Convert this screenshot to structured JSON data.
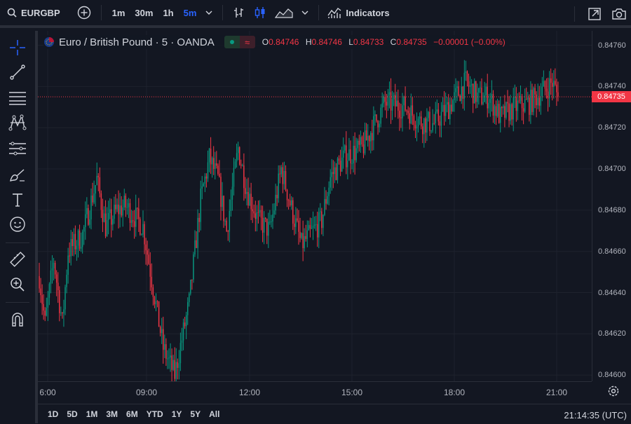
{
  "header": {
    "symbol": "EURGBP",
    "intervals": [
      "1m",
      "30m",
      "1h",
      "5m"
    ],
    "active_interval": "5m",
    "indicators_label": "Indicators"
  },
  "legend": {
    "title": "Euro / British Pound · 5 · OANDA",
    "o_label": "O",
    "o": "0.84746",
    "h_label": "H",
    "h": "0.84746",
    "l_label": "L",
    "l": "0.84733",
    "c_label": "C",
    "c": "0.84735",
    "change": "−0.00001 (−0.00%)"
  },
  "price_axis": {
    "ticks": [
      "0.84760",
      "0.84740",
      "0.84720",
      "0.84700",
      "0.84680",
      "0.84660",
      "0.84640",
      "0.84620",
      "0.84600"
    ],
    "last_price": "0.84735"
  },
  "time_axis": {
    "ticks": [
      "6:00",
      "09:00",
      "12:00",
      "15:00",
      "18:00",
      "21:00"
    ]
  },
  "ranges": [
    "1D",
    "5D",
    "1M",
    "3M",
    "6M",
    "YTD",
    "1Y",
    "5Y",
    "All"
  ],
  "clock": "21:14:35 (UTC)",
  "colors": {
    "up": "#089981",
    "down": "#f23645",
    "bg": "#131722",
    "accent": "#2962ff"
  },
  "chart_data": {
    "type": "candlestick",
    "ylim": [
      0.84597,
      0.84767
    ],
    "last_price": 0.84735,
    "anchors": [
      [
        0,
        0.84648
      ],
      [
        4,
        0.84625
      ],
      [
        10,
        0.84656
      ],
      [
        16,
        0.84625
      ],
      [
        20,
        0.8466
      ],
      [
        30,
        0.84668
      ],
      [
        40,
        0.84695
      ],
      [
        46,
        0.84672
      ],
      [
        54,
        0.8468
      ],
      [
        60,
        0.84682
      ],
      [
        72,
        0.84672
      ],
      [
        86,
        0.84613
      ],
      [
        94,
        0.846
      ],
      [
        104,
        0.84635
      ],
      [
        112,
        0.84685
      ],
      [
        118,
        0.84705
      ],
      [
        124,
        0.84695
      ],
      [
        130,
        0.8467
      ],
      [
        138,
        0.8471
      ],
      [
        144,
        0.8469
      ],
      [
        152,
        0.84675
      ],
      [
        160,
        0.8467
      ],
      [
        168,
        0.847
      ],
      [
        176,
        0.84678
      ],
      [
        182,
        0.84663
      ],
      [
        190,
        0.8467
      ],
      [
        196,
        0.84675
      ],
      [
        202,
        0.84696
      ],
      [
        212,
        0.84706
      ],
      [
        224,
        0.8471
      ],
      [
        240,
        0.84732
      ],
      [
        254,
        0.8473
      ],
      [
        264,
        0.84723
      ],
      [
        274,
        0.84722
      ],
      [
        284,
        0.8473
      ],
      [
        296,
        0.84742
      ],
      [
        304,
        0.84735
      ],
      [
        312,
        0.84735
      ],
      [
        320,
        0.84725
      ],
      [
        330,
        0.8473
      ],
      [
        340,
        0.84732
      ],
      [
        350,
        0.84738
      ],
      [
        356,
        0.84742
      ],
      [
        360,
        0.84735
      ]
    ]
  }
}
